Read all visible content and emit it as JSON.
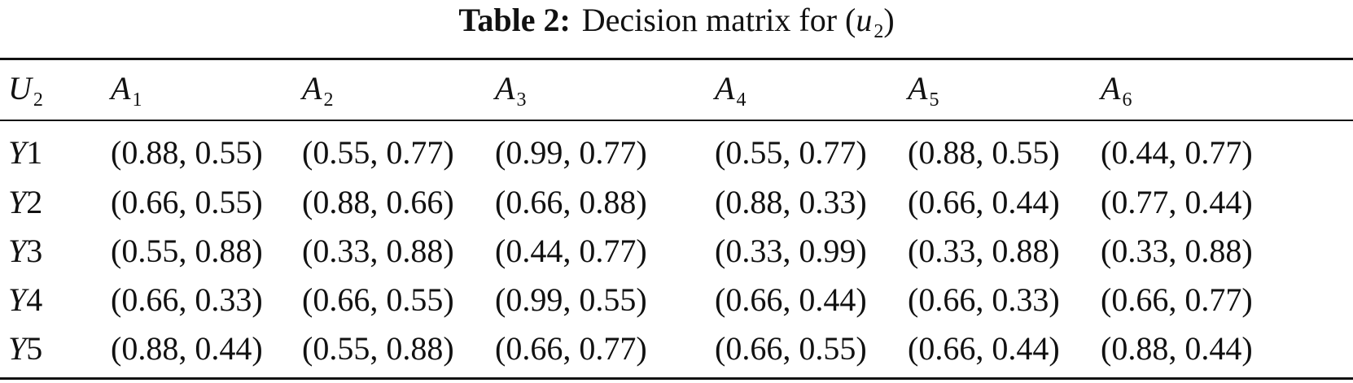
{
  "caption": {
    "label": "Table 2:",
    "text": "Decision matrix for (",
    "var": "u",
    "var_sub": "2",
    "close": ")"
  },
  "table": {
    "corner": {
      "symbol": "U",
      "sub": "2"
    },
    "columns": [
      {
        "symbol": "A",
        "sub": "1"
      },
      {
        "symbol": "A",
        "sub": "2"
      },
      {
        "symbol": "A",
        "sub": "3"
      },
      {
        "symbol": "A",
        "sub": "4"
      },
      {
        "symbol": "A",
        "sub": "5"
      },
      {
        "symbol": "A",
        "sub": "6"
      }
    ],
    "rows": [
      {
        "label": {
          "symbol": "Y",
          "num": "1"
        },
        "cells": [
          "(0.88, 0.55)",
          "(0.55, 0.77)",
          "(0.99, 0.77)",
          "(0.55, 0.77)",
          "(0.88, 0.55)",
          "(0.44, 0.77)"
        ]
      },
      {
        "label": {
          "symbol": "Y",
          "num": "2"
        },
        "cells": [
          "(0.66, 0.55)",
          "(0.88, 0.66)",
          "(0.66, 0.88)",
          "(0.88, 0.33)",
          "(0.66, 0.44)",
          "(0.77, 0.44)"
        ]
      },
      {
        "label": {
          "symbol": "Y",
          "num": "3"
        },
        "cells": [
          "(0.55, 0.88)",
          "(0.33, 0.88)",
          "(0.44, 0.77)",
          "(0.33, 0.99)",
          "(0.33, 0.88)",
          "(0.33, 0.88)"
        ]
      },
      {
        "label": {
          "symbol": "Y",
          "num": "4"
        },
        "cells": [
          "(0.66, 0.33)",
          "(0.66, 0.55)",
          "(0.99, 0.55)",
          "(0.66, 0.44)",
          "(0.66, 0.33)",
          "(0.66, 0.77)"
        ]
      },
      {
        "label": {
          "symbol": "Y",
          "num": "5"
        },
        "cells": [
          "(0.88, 0.44)",
          "(0.55, 0.88)",
          "(0.66, 0.77)",
          "(0.66, 0.55)",
          "(0.66, 0.44)",
          "(0.88, 0.44)"
        ]
      }
    ]
  }
}
